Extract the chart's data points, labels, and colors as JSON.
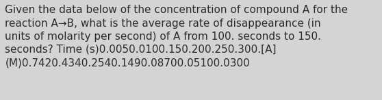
{
  "line1": "Given the data below of the concentration of compound A for the",
  "line2": "reaction A→B, what is the average rate of disappearance (in",
  "line3": "units of molarity per second) of A from 100. seconds to 150.",
  "line4": "seconds? Time (s)0.0050.0100.150.200.250.300.[A]",
  "line5": "(M)0.7420.4340.2540.1490.08700.05100.0300",
  "background_color": "#d4d4d4",
  "text_color": "#2a2a2a",
  "font_size": 11.0,
  "font_family": "DejaVu Sans",
  "font_weight": "normal"
}
